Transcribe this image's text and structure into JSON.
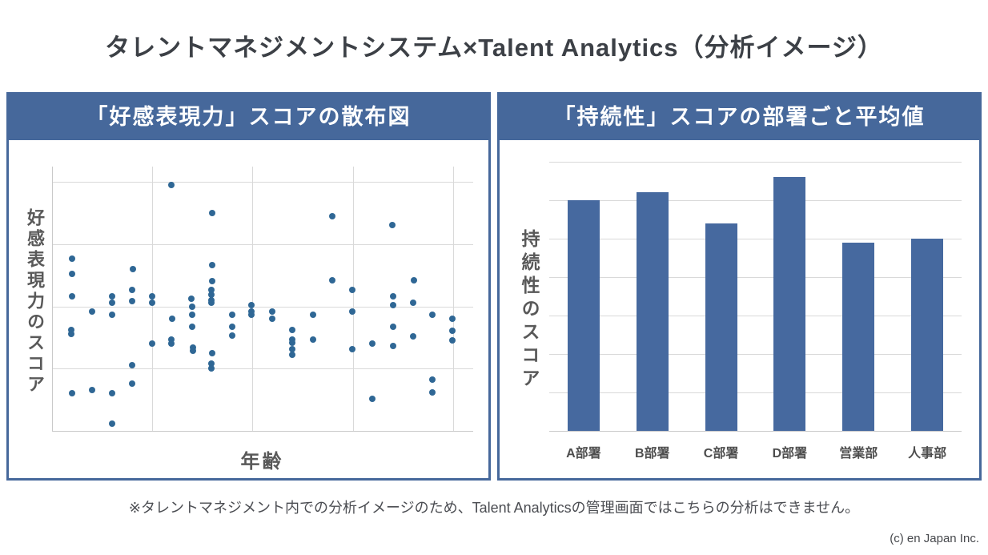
{
  "page": {
    "title": "タレントマネジメントシステム×Talent Analytics（分析イメージ）",
    "footnote": "※タレントマネジメント内での分析イメージのため、Talent Analyticsの管理画面ではこちらの分析はできません。",
    "copyright": "(c) en Japan Inc."
  },
  "colors": {
    "accent_blue": "#46689b",
    "bar_blue": "#46699f",
    "point_blue": "#2f6795",
    "grid_gray": "#d9d9d9",
    "spine_gray": "#c9c9c9",
    "title_text": "#3c4046",
    "axis_label_text": "#595959"
  },
  "scatter_panel": {
    "header": "「好感表現力」スコアの散布図",
    "y_axis_label": "好感表現力のスコア",
    "x_axis_label": "年齢"
  },
  "bar_panel": {
    "header": "「持続性」スコアの部署ごと平均値",
    "y_axis_label": "持続性のスコア",
    "categories": [
      "A部署",
      "B部署",
      "C部署",
      "D部署",
      "営業部",
      "人事部"
    ]
  },
  "chart_data": [
    {
      "type": "scatter",
      "title": "「好感表現力」スコアの散布図",
      "xlabel": "年齢",
      "ylabel": "好感表現力のスコア",
      "tick_labels": "none — both axes are unlabeled in the image; values given as percent of plot area (x: 0=left→100=right, y: 0=top→100=bottom)",
      "grid": true,
      "x_gridlines_pct": [
        23.6,
        47.4,
        71.4,
        95.2
      ],
      "y_gridlines_pct": [
        5.8,
        29.4,
        53.0,
        76.4
      ],
      "points_pct": [
        [
          28.2,
          7.0
        ],
        [
          37.9,
          17.6
        ],
        [
          66.5,
          18.8
        ],
        [
          80.8,
          22.1
        ],
        [
          4.6,
          34.8
        ],
        [
          4.6,
          40.6
        ],
        [
          19.0,
          38.8
        ],
        [
          37.9,
          37.3
        ],
        [
          37.9,
          43.3
        ],
        [
          66.5,
          43.0
        ],
        [
          85.9,
          43.0
        ],
        [
          18.9,
          46.7
        ],
        [
          37.7,
          46.7
        ],
        [
          71.2,
          46.7
        ],
        [
          4.6,
          49.1
        ],
        [
          14.1,
          49.1
        ],
        [
          23.6,
          49.1
        ],
        [
          33.0,
          50.0
        ],
        [
          37.7,
          48.5
        ],
        [
          81.0,
          49.1
        ],
        [
          14.1,
          51.5
        ],
        [
          18.9,
          50.9
        ],
        [
          23.6,
          51.5
        ],
        [
          37.7,
          50.6
        ],
        [
          37.7,
          51.5
        ],
        [
          47.2,
          52.4
        ],
        [
          81.0,
          52.4
        ],
        [
          85.7,
          51.5
        ],
        [
          9.3,
          54.8
        ],
        [
          14.1,
          56.1
        ],
        [
          28.4,
          57.6
        ],
        [
          33.1,
          53.0
        ],
        [
          33.1,
          56.1
        ],
        [
          42.7,
          56.1
        ],
        [
          47.2,
          54.8
        ],
        [
          47.2,
          56.1
        ],
        [
          52.2,
          54.8
        ],
        [
          52.2,
          57.6
        ],
        [
          61.9,
          56.1
        ],
        [
          71.2,
          54.8
        ],
        [
          90.3,
          56.1
        ],
        [
          95.0,
          57.6
        ],
        [
          4.4,
          61.8
        ],
        [
          4.4,
          63.3
        ],
        [
          33.1,
          60.6
        ],
        [
          42.7,
          60.6
        ],
        [
          57.0,
          61.8
        ],
        [
          81.0,
          60.6
        ],
        [
          85.7,
          64.2
        ],
        [
          95.0,
          62.1
        ],
        [
          23.6,
          67.0
        ],
        [
          28.2,
          65.5
        ],
        [
          28.2,
          67.0
        ],
        [
          33.3,
          68.5
        ],
        [
          33.3,
          69.7
        ],
        [
          42.7,
          63.9
        ],
        [
          57.0,
          65.5
        ],
        [
          57.0,
          66.7
        ],
        [
          57.0,
          69.1
        ],
        [
          61.9,
          65.5
        ],
        [
          71.2,
          69.1
        ],
        [
          76.0,
          67.0
        ],
        [
          81.0,
          67.9
        ],
        [
          95.0,
          65.8
        ],
        [
          37.9,
          70.6
        ],
        [
          37.7,
          74.5
        ],
        [
          37.7,
          76.4
        ],
        [
          57.0,
          71.2
        ],
        [
          18.9,
          75.2
        ],
        [
          18.9,
          82.1
        ],
        [
          90.3,
          80.6
        ],
        [
          4.6,
          85.8
        ],
        [
          9.3,
          84.5
        ],
        [
          14.1,
          85.8
        ],
        [
          90.3,
          85.5
        ],
        [
          76.0,
          87.9
        ],
        [
          14.1,
          97.3
        ]
      ]
    },
    {
      "type": "bar",
      "title": "「持続性」スコアの部署ごと平均値",
      "xlabel": "",
      "ylabel": "持続性のスコア",
      "categories": [
        "A部署",
        "B部署",
        "C部署",
        "D部署",
        "営業部",
        "人事部"
      ],
      "values": [
        6.0,
        6.2,
        5.4,
        6.6,
        4.9,
        5.0
      ],
      "ylim": [
        0,
        7
      ],
      "gridline_interval": 1,
      "tick_labels": "none — y axis is unlabeled in the image; values estimated in gridline units (7 equal intervals from axis to top gridline)",
      "grid": true,
      "legend": "none"
    }
  ]
}
